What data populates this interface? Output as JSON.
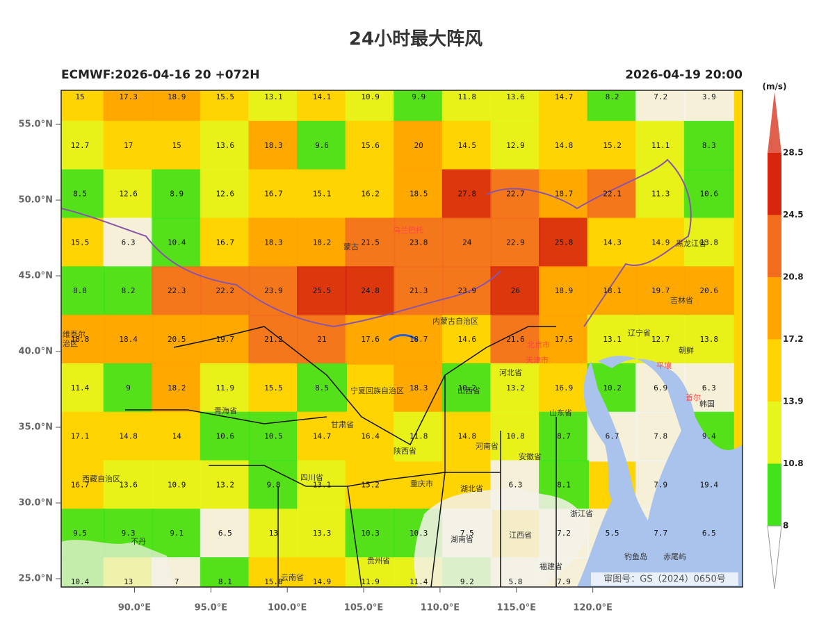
{
  "title": "24小时最大阵风",
  "run_label": "ECMWF:2026-04-16 20 +072H",
  "valid_time": "2026-04-19 20:00",
  "map": {
    "xlim": [
      85.2,
      129.8
    ],
    "ylim": [
      24.45,
      57.25
    ],
    "xticks": [
      {
        "value": 90,
        "label": "90.0°E"
      },
      {
        "value": 95,
        "label": "95.0°E"
      },
      {
        "value": 100,
        "label": "100.0°E"
      },
      {
        "value": 105,
        "label": "105.0°E"
      },
      {
        "value": 110,
        "label": "110.0°E"
      },
      {
        "value": 115,
        "label": "115.0°E"
      },
      {
        "value": 120,
        "label": "120.0°E"
      }
    ],
    "yticks": [
      {
        "value": 25,
        "label": "25.0°N"
      },
      {
        "value": 30,
        "label": "30.0°N"
      },
      {
        "value": 35,
        "label": "35.0°N"
      },
      {
        "value": 40,
        "label": "40.0°N"
      },
      {
        "value": 45,
        "label": "45.0°N"
      },
      {
        "value": 50,
        "label": "50.0°N"
      },
      {
        "value": 55,
        "label": "55.0°N"
      }
    ],
    "values": [
      [
        15.0,
        17.3,
        18.9,
        15.5,
        13.1,
        14.1,
        10.9,
        9.9,
        11.8,
        13.6,
        14.7,
        8.2,
        7.2,
        3.9
      ],
      [
        12.7,
        17.0,
        15.0,
        13.6,
        18.3,
        9.6,
        15.6,
        20.0,
        14.5,
        12.9,
        14.8,
        15.2,
        11.1,
        8.3
      ],
      [
        8.5,
        12.6,
        8.9,
        12.6,
        16.7,
        15.1,
        16.2,
        18.5,
        27.8,
        22.7,
        18.7,
        22.1,
        11.3,
        10.6
      ],
      [
        15.5,
        6.3,
        10.4,
        16.7,
        18.3,
        18.2,
        21.5,
        23.8,
        24.0,
        22.9,
        25.8,
        14.3,
        14.9,
        13.8
      ],
      [
        8.8,
        8.2,
        22.3,
        22.2,
        23.9,
        25.5,
        24.8,
        21.3,
        23.9,
        26.0,
        18.9,
        18.1,
        19.7,
        20.6
      ],
      [
        18.8,
        18.4,
        20.5,
        19.7,
        21.2,
        21.0,
        17.6,
        18.7,
        14.6,
        21.6,
        17.5,
        13.1,
        12.7,
        13.8
      ],
      [
        11.4,
        9.0,
        18.2,
        11.9,
        15.5,
        8.5,
        null,
        18.3,
        10.2,
        13.2,
        16.9,
        10.2,
        6.9,
        6.3
      ],
      [
        17.1,
        14.8,
        14.0,
        10.6,
        10.5,
        14.7,
        16.4,
        11.8,
        14.8,
        10.8,
        8.7,
        6.7,
        7.8,
        9.4
      ],
      [
        16.7,
        13.6,
        10.9,
        13.2,
        9.8,
        13.1,
        15.2,
        null,
        null,
        6.3,
        8.1,
        null,
        7.9,
        19.4
      ],
      [
        9.5,
        9.3,
        9.1,
        6.5,
        13.0,
        13.3,
        10.3,
        10.3,
        7.5,
        null,
        7.2,
        5.5,
        7.7,
        6.5
      ],
      [
        10.4,
        13.0,
        7.0,
        8.1,
        15.8,
        14.9,
        11.9,
        11.4,
        9.2,
        5.8,
        7.9,
        null,
        null,
        null
      ]
    ],
    "places": [
      "蒙古",
      "乌兰巴托",
      "内蒙古自治区",
      "黑龙江省",
      "吉林省",
      "辽宁省",
      "朝鲜",
      "平壤",
      "韩国",
      "首尔",
      "北京市",
      "天津市",
      "河北省",
      "山西省",
      "山东省",
      "河南省",
      "陕西省",
      "甘肃省",
      "宁夏回族自治区",
      "青海省",
      "维吾尔",
      "治区",
      "西藏自治区",
      "四川省",
      "重庆市",
      "湖北省",
      "安徽省",
      "浙江省",
      "江西省",
      "湖南省",
      "贵州省",
      "福建省",
      "云南省",
      "钓鱼岛",
      "赤尾屿",
      "不丹"
    ],
    "approval": "审图号：GS（2024）0650号"
  },
  "colorbar": {
    "unit": "(m/s)",
    "levels": [
      8,
      10.8,
      13.9,
      17.2,
      20.8,
      24.5,
      28.5
    ],
    "colors": [
      "#42e21c",
      "#e6f51c",
      "#ffd400",
      "#ffa400",
      "#f36d1e",
      "#d8260e"
    ],
    "over_color": "#e0604e",
    "under_color": "#ffffff"
  }
}
